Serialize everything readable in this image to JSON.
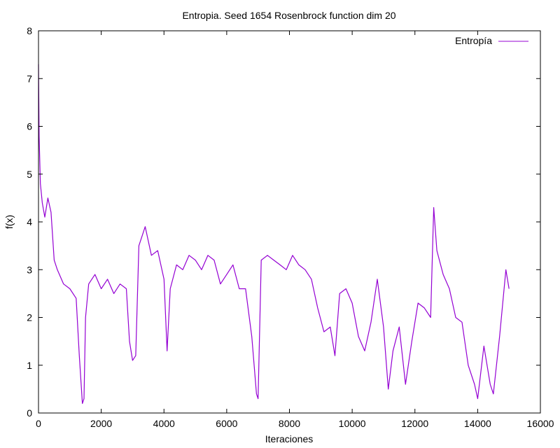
{
  "chart_data": {
    "type": "line",
    "title": "Entropia. Seed 1654 Rosenbrock function dim 20",
    "xlabel": "Iteraciones",
    "ylabel": "f(x)",
    "xlim": [
      0,
      16000
    ],
    "ylim": [
      0,
      8
    ],
    "xticks": [
      0,
      2000,
      4000,
      6000,
      8000,
      10000,
      12000,
      14000,
      16000
    ],
    "yticks": [
      0,
      1,
      2,
      3,
      4,
      5,
      6,
      7,
      8
    ],
    "grid": false,
    "legend_position": "top-right",
    "series": [
      {
        "name": "Entropía",
        "color": "#9400d3",
        "x": [
          0,
          20,
          60,
          120,
          200,
          300,
          400,
          500,
          600,
          800,
          1000,
          1200,
          1300,
          1400,
          1450,
          1500,
          1600,
          1800,
          2000,
          2200,
          2400,
          2600,
          2800,
          2900,
          3000,
          3100,
          3200,
          3400,
          3600,
          3800,
          4000,
          4100,
          4200,
          4400,
          4600,
          4800,
          5000,
          5200,
          5400,
          5600,
          5800,
          6000,
          6200,
          6400,
          6600,
          6800,
          6950,
          7000,
          7100,
          7300,
          7500,
          7700,
          7900,
          8100,
          8300,
          8500,
          8700,
          8900,
          9100,
          9300,
          9450,
          9600,
          9800,
          10000,
          10200,
          10400,
          10600,
          10800,
          11000,
          11150,
          11300,
          11500,
          11700,
          11900,
          12100,
          12300,
          12500,
          12600,
          12700,
          12900,
          13100,
          13300,
          13500,
          13700,
          13900,
          14000,
          14200,
          14400,
          14500,
          14700,
          14900,
          15000
        ],
        "values": [
          7.3,
          5.8,
          4.8,
          4.4,
          4.1,
          4.5,
          4.2,
          3.2,
          3.0,
          2.7,
          2.6,
          2.4,
          1.2,
          0.2,
          0.3,
          2.0,
          2.7,
          2.9,
          2.6,
          2.8,
          2.5,
          2.7,
          2.6,
          1.5,
          1.1,
          1.2,
          3.5,
          3.9,
          3.3,
          3.4,
          2.8,
          1.3,
          2.6,
          3.1,
          3.0,
          3.3,
          3.2,
          3.0,
          3.3,
          3.2,
          2.7,
          2.9,
          3.1,
          2.6,
          2.6,
          1.6,
          0.4,
          0.3,
          3.2,
          3.3,
          3.2,
          3.1,
          3.0,
          3.3,
          3.1,
          3.0,
          2.8,
          2.2,
          1.7,
          1.8,
          1.2,
          2.5,
          2.6,
          2.3,
          1.6,
          1.3,
          1.9,
          2.8,
          1.8,
          0.5,
          1.3,
          1.8,
          0.6,
          1.5,
          2.3,
          2.2,
          2.0,
          4.3,
          3.4,
          2.9,
          2.6,
          2.0,
          1.9,
          1.0,
          0.6,
          0.3,
          1.4,
          0.6,
          0.4,
          1.6,
          3.0,
          2.6
        ]
      }
    ]
  }
}
